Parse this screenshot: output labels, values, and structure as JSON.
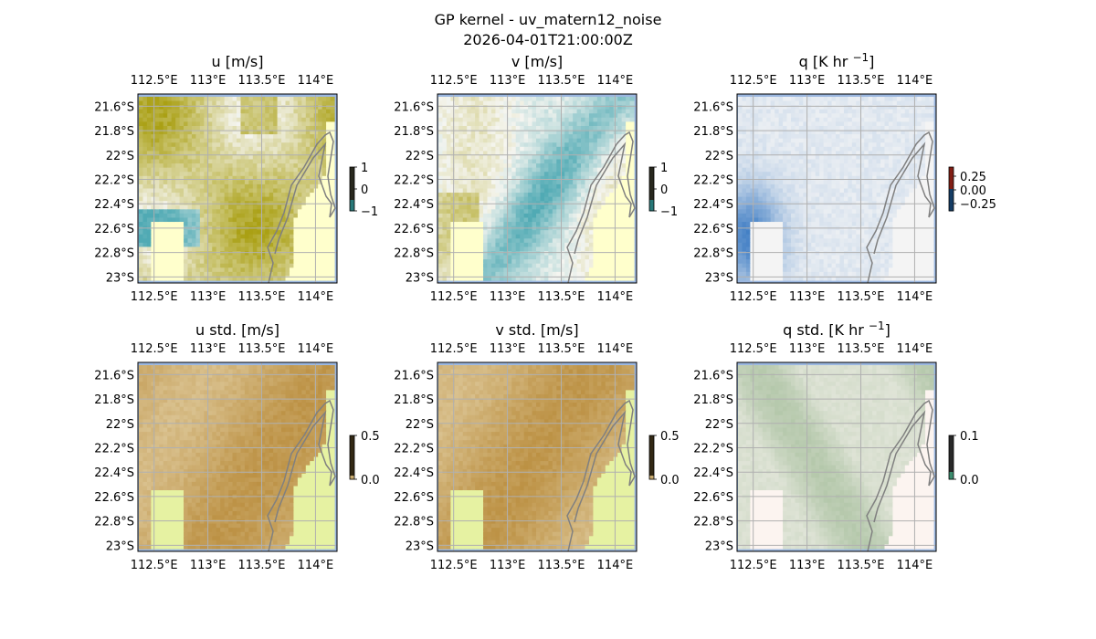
{
  "figure": {
    "suptitle_line1": "GP kernel - uv_matern12_noise",
    "suptitle_line2": "2026-04-01T21:00:00Z"
  },
  "axes_common": {
    "lon_ticks": [
      "112.5°E",
      "113°E",
      "113.5°E",
      "114°E"
    ],
    "lat_ticks": [
      "21.6°S",
      "21.8°S",
      "22°S",
      "22.2°S",
      "22.4°S",
      "22.6°S",
      "22.8°S",
      "23°S"
    ],
    "lon_range": [
      112.35,
      114.2
    ],
    "lat_range": [
      -23.05,
      -21.5
    ]
  },
  "colors": {
    "land": "#ffffcc",
    "land_std": "#e6f2a2",
    "ocean_edge": "#9bb7e0",
    "coast": "#808080",
    "grid": "#b0b0b0"
  },
  "chart_data": [
    {
      "type": "heatmap",
      "title": "u [m/s]",
      "colorbar_ticks": [
        "1",
        "0",
        "−1"
      ],
      "vmin": -1,
      "vmax": 1,
      "colormap": "diverging teal-white-olive",
      "grid": true
    },
    {
      "type": "heatmap",
      "title": "v [m/s]",
      "colorbar_ticks": [
        "1",
        "0",
        "−1"
      ],
      "vmin": -1,
      "vmax": 1,
      "colormap": "diverging teal-white-olive",
      "grid": true
    },
    {
      "type": "heatmap",
      "title_prefix": "q [K hr",
      "title_sup": "−1",
      "title_suffix": "]",
      "colorbar_ticks": [
        "0.25",
        "0.00",
        "−0.25"
      ],
      "vmin": -0.4,
      "vmax": 0.4,
      "colormap": "diverging blue-white-red",
      "grid": true
    },
    {
      "type": "heatmap",
      "title": "u std. [m/s]",
      "colorbar_ticks": [
        "0.5",
        "0.0"
      ],
      "vmin": 0,
      "vmax": 0.5,
      "colormap": "sequential brown",
      "grid": true
    },
    {
      "type": "heatmap",
      "title": "v std. [m/s]",
      "colorbar_ticks": [
        "0.5",
        "0.0"
      ],
      "vmin": 0,
      "vmax": 0.5,
      "colormap": "sequential brown",
      "grid": true
    },
    {
      "type": "heatmap",
      "title_prefix": "q std. [K hr",
      "title_sup": "−1",
      "title_suffix": "]",
      "colorbar_ticks": [
        "0.1",
        "0.0"
      ],
      "vmin": 0,
      "vmax": 0.1,
      "colormap": "sequential green",
      "grid": true
    }
  ]
}
